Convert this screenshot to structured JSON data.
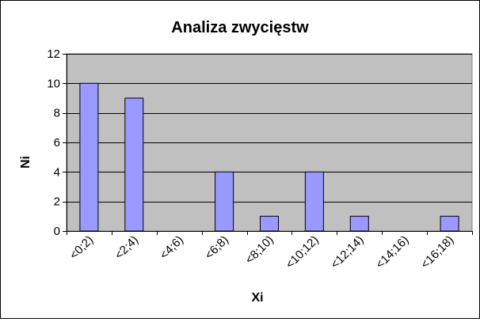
{
  "chart_data": {
    "type": "bar",
    "title": "Analiza zwycięstw",
    "xlabel": "Xi",
    "ylabel": "Ni",
    "categories": [
      "<0;2)",
      "<2;4)",
      "<4;6)",
      "<6;8)",
      "<8;10)",
      "<10;12)",
      "<12;14)",
      "<14;16)",
      "<16;18)"
    ],
    "values": [
      10,
      9,
      0,
      4,
      1,
      4,
      1,
      0,
      1
    ],
    "ylim": [
      0,
      12
    ],
    "yticks": [
      0,
      2,
      4,
      6,
      8,
      10,
      12
    ],
    "grid": true,
    "legend": "none",
    "colors": {
      "bar_fill": "#9999ff",
      "bar_stroke": "#000000",
      "plot_background": "#c0c0c0",
      "gridline": "#000000"
    }
  }
}
